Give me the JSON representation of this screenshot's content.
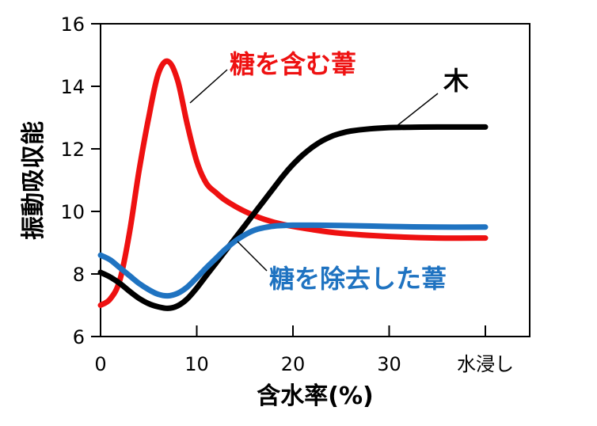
{
  "chart_data": {
    "type": "line",
    "xlabel": "含水率(%)",
    "ylabel": "振動吸収能",
    "xlim": [
      0,
      44
    ],
    "ylim": [
      6,
      16
    ],
    "x_ticks": [
      {
        "value": 0,
        "label": "0"
      },
      {
        "value": 10,
        "label": "10"
      },
      {
        "value": 20,
        "label": "20"
      },
      {
        "value": 30,
        "label": "30"
      },
      {
        "value": 40,
        "label": "水浸し"
      }
    ],
    "y_ticks": [
      6,
      8,
      10,
      12,
      14,
      16
    ],
    "grid": false,
    "series": [
      {
        "name": "糖を含む葦",
        "color": "#ee1111",
        "x": [
          0,
          1,
          2,
          3,
          4,
          5,
          6,
          7,
          8,
          9,
          10,
          11,
          12,
          13,
          15,
          17,
          19,
          22,
          25,
          30,
          35,
          40
        ],
        "y": [
          7.0,
          7.2,
          7.8,
          9.3,
          11.3,
          13.0,
          14.4,
          14.8,
          14.2,
          12.8,
          11.6,
          10.9,
          10.6,
          10.35,
          10.0,
          9.75,
          9.58,
          9.42,
          9.3,
          9.2,
          9.15,
          9.15
        ]
      },
      {
        "name": "木",
        "color": "#000000",
        "x": [
          0,
          1,
          2,
          3,
          4,
          5,
          6,
          7,
          8,
          9,
          10,
          11,
          12,
          13,
          14,
          15,
          16,
          17,
          18,
          19,
          20,
          21,
          22,
          23,
          24,
          25,
          26,
          28,
          30,
          32,
          35,
          40
        ],
        "y": [
          8.05,
          7.9,
          7.7,
          7.45,
          7.22,
          7.05,
          6.95,
          6.9,
          6.98,
          7.2,
          7.55,
          7.95,
          8.35,
          8.75,
          9.15,
          9.55,
          9.95,
          10.35,
          10.75,
          11.15,
          11.5,
          11.8,
          12.05,
          12.25,
          12.4,
          12.5,
          12.57,
          12.64,
          12.68,
          12.69,
          12.7,
          12.7
        ]
      },
      {
        "name": "糖を除去した葦",
        "color": "#1f73c1",
        "x": [
          0,
          1,
          2,
          3,
          4,
          5,
          6,
          7,
          8,
          9,
          10,
          11,
          12,
          13,
          14,
          15,
          16,
          17,
          18,
          19,
          20,
          22,
          25,
          30,
          35,
          40
        ],
        "y": [
          8.6,
          8.45,
          8.2,
          7.95,
          7.7,
          7.5,
          7.35,
          7.3,
          7.38,
          7.58,
          7.88,
          8.2,
          8.5,
          8.8,
          9.05,
          9.25,
          9.4,
          9.48,
          9.53,
          9.55,
          9.56,
          9.56,
          9.55,
          9.52,
          9.5,
          9.5
        ]
      }
    ],
    "annotations": [
      {
        "text": "糖を含む葦",
        "color": "#ee1111"
      },
      {
        "text": "木",
        "color": "#000000"
      },
      {
        "text": "糖を除去した葦",
        "color": "#1f73c1"
      }
    ]
  }
}
